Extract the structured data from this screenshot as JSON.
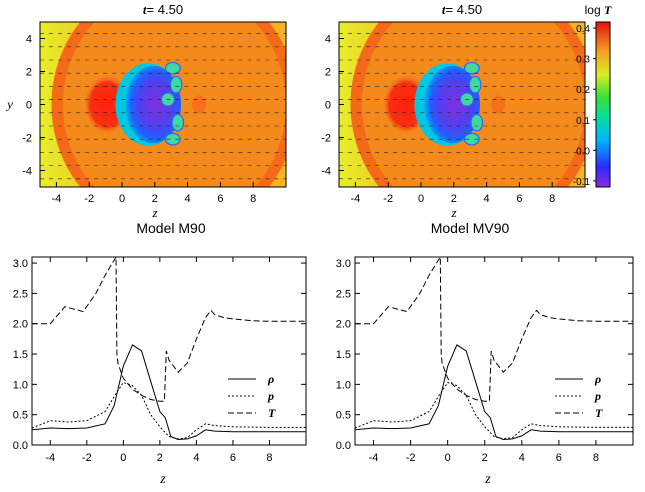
{
  "colorbar": {
    "title_prefix": "log ",
    "title_var": "T",
    "ticks": [
      {
        "value": 0.4,
        "label": "0.4"
      },
      {
        "value": 0.3,
        "label": "0.3"
      },
      {
        "value": 0.2,
        "label": "0.2"
      },
      {
        "value": 0.1,
        "label": "0.1"
      },
      {
        "value": 0.0,
        "label": "0.0"
      },
      {
        "value": -0.1,
        "label": "-0.1"
      }
    ],
    "range": [
      -0.12,
      0.42
    ]
  },
  "chart_data": [
    {
      "type": "heatmap",
      "time_var": "t",
      "time_value": "4.50",
      "xlabel": "z",
      "ylabel": "y",
      "xlim": [
        -5,
        10
      ],
      "ylim": [
        -5,
        5
      ],
      "xticks": [
        -4,
        -2,
        0,
        2,
        4,
        6,
        8
      ],
      "yticks": [
        -4,
        -2,
        0,
        2,
        4
      ],
      "title_below": "Model M90"
    },
    {
      "type": "heatmap",
      "time_var": "t",
      "time_value": "4.50",
      "xlabel": "z",
      "ylabel": "",
      "xlim": [
        -5,
        10
      ],
      "ylim": [
        -5,
        5
      ],
      "xticks": [
        -4,
        -2,
        0,
        2,
        4,
        6,
        8
      ],
      "yticks": [
        -4,
        -2,
        0,
        2,
        4
      ],
      "title_below": "Model MV90"
    },
    {
      "type": "line",
      "xlabel": "z",
      "xlim": [
        -5,
        10
      ],
      "ylim": [
        0.0,
        3.1
      ],
      "xticks": [
        -4,
        -2,
        0,
        2,
        4,
        6,
        8
      ],
      "yticks": [
        "0.0",
        "0.5",
        "1.0",
        "1.5",
        "2.0",
        "2.5",
        "3.0"
      ],
      "legend_position": "right",
      "series": [
        {
          "name": "ρ",
          "style": "solid",
          "x": [
            -5,
            -4,
            -3,
            -2,
            -1,
            -0.5,
            0,
            0.5,
            1,
            1.5,
            2,
            2.3,
            2.6,
            3,
            3.5,
            4,
            4.5,
            5,
            6,
            8,
            10
          ],
          "y": [
            0.25,
            0.28,
            0.27,
            0.28,
            0.35,
            0.65,
            1.3,
            1.65,
            1.55,
            1.05,
            0.55,
            0.45,
            0.14,
            0.09,
            0.1,
            0.15,
            0.25,
            0.23,
            0.22,
            0.22,
            0.22
          ]
        },
        {
          "name": "p",
          "style": "dotted",
          "x": [
            -5,
            -4,
            -3,
            -2,
            -1,
            -0.5,
            0,
            0.5,
            1,
            1.5,
            2,
            2.5,
            3,
            3.5,
            4,
            4.5,
            5,
            6,
            8,
            10
          ],
          "y": [
            0.28,
            0.4,
            0.38,
            0.4,
            0.55,
            0.8,
            1.03,
            0.98,
            0.82,
            0.5,
            0.3,
            0.14,
            0.1,
            0.12,
            0.25,
            0.35,
            0.32,
            0.3,
            0.29,
            0.29
          ]
        },
        {
          "name": "T",
          "style": "dashed",
          "x": [
            -5,
            -4,
            -3.2,
            -2.2,
            -1.5,
            -1,
            -0.4,
            -0.35,
            -0.3,
            0,
            0.5,
            1,
            1.5,
            2,
            2.25,
            2.35,
            2.5,
            3,
            3.5,
            4,
            4.5,
            4.8,
            5,
            5.5,
            6,
            7,
            8,
            10
          ],
          "y": [
            2.0,
            2.0,
            2.28,
            2.2,
            2.5,
            2.8,
            3.1,
            1.5,
            1.35,
            1.1,
            0.92,
            0.82,
            0.75,
            0.72,
            0.72,
            1.55,
            1.4,
            1.2,
            1.35,
            1.75,
            2.1,
            2.22,
            2.15,
            2.1,
            2.08,
            2.05,
            2.04,
            2.04
          ]
        }
      ]
    },
    {
      "type": "line",
      "xlabel": "z",
      "xlim": [
        -5,
        10
      ],
      "ylim": [
        0.0,
        3.1
      ],
      "xticks": [
        -4,
        -2,
        0,
        2,
        4,
        6,
        8
      ],
      "yticks": [
        "0.0",
        "0.5",
        "1.0",
        "1.5",
        "2.0",
        "2.5",
        "3.0"
      ],
      "legend_position": "right",
      "series": [
        {
          "name": "ρ",
          "style": "solid",
          "x": [
            -5,
            -4,
            -3,
            -2,
            -1,
            -0.5,
            0,
            0.5,
            1,
            1.5,
            2,
            2.3,
            2.6,
            3,
            3.5,
            4,
            4.5,
            5,
            6,
            8,
            10
          ],
          "y": [
            0.25,
            0.28,
            0.27,
            0.28,
            0.35,
            0.65,
            1.3,
            1.65,
            1.55,
            1.05,
            0.55,
            0.45,
            0.14,
            0.09,
            0.1,
            0.15,
            0.25,
            0.23,
            0.22,
            0.22,
            0.22
          ]
        },
        {
          "name": "p",
          "style": "dotted",
          "x": [
            -5,
            -4,
            -3,
            -2,
            -1,
            -0.5,
            0,
            0.5,
            1,
            1.5,
            2,
            2.5,
            3,
            3.5,
            4,
            4.5,
            5,
            6,
            8,
            10
          ],
          "y": [
            0.28,
            0.4,
            0.38,
            0.4,
            0.55,
            0.8,
            1.03,
            0.98,
            0.82,
            0.5,
            0.3,
            0.14,
            0.1,
            0.12,
            0.25,
            0.35,
            0.32,
            0.3,
            0.29,
            0.29
          ]
        },
        {
          "name": "T",
          "style": "dashed",
          "x": [
            -5,
            -4,
            -3.2,
            -2.2,
            -1.5,
            -1,
            -0.4,
            -0.35,
            -0.3,
            0,
            0.5,
            1,
            1.5,
            2,
            2.25,
            2.35,
            2.5,
            3,
            3.5,
            4,
            4.5,
            4.8,
            5,
            5.5,
            6,
            7,
            8,
            10
          ],
          "y": [
            2.0,
            2.0,
            2.28,
            2.2,
            2.5,
            2.8,
            3.1,
            1.5,
            1.35,
            1.1,
            0.92,
            0.82,
            0.75,
            0.72,
            0.72,
            1.55,
            1.4,
            1.2,
            1.35,
            1.75,
            2.1,
            2.22,
            2.15,
            2.1,
            2.08,
            2.05,
            2.04,
            2.04
          ]
        }
      ]
    }
  ]
}
